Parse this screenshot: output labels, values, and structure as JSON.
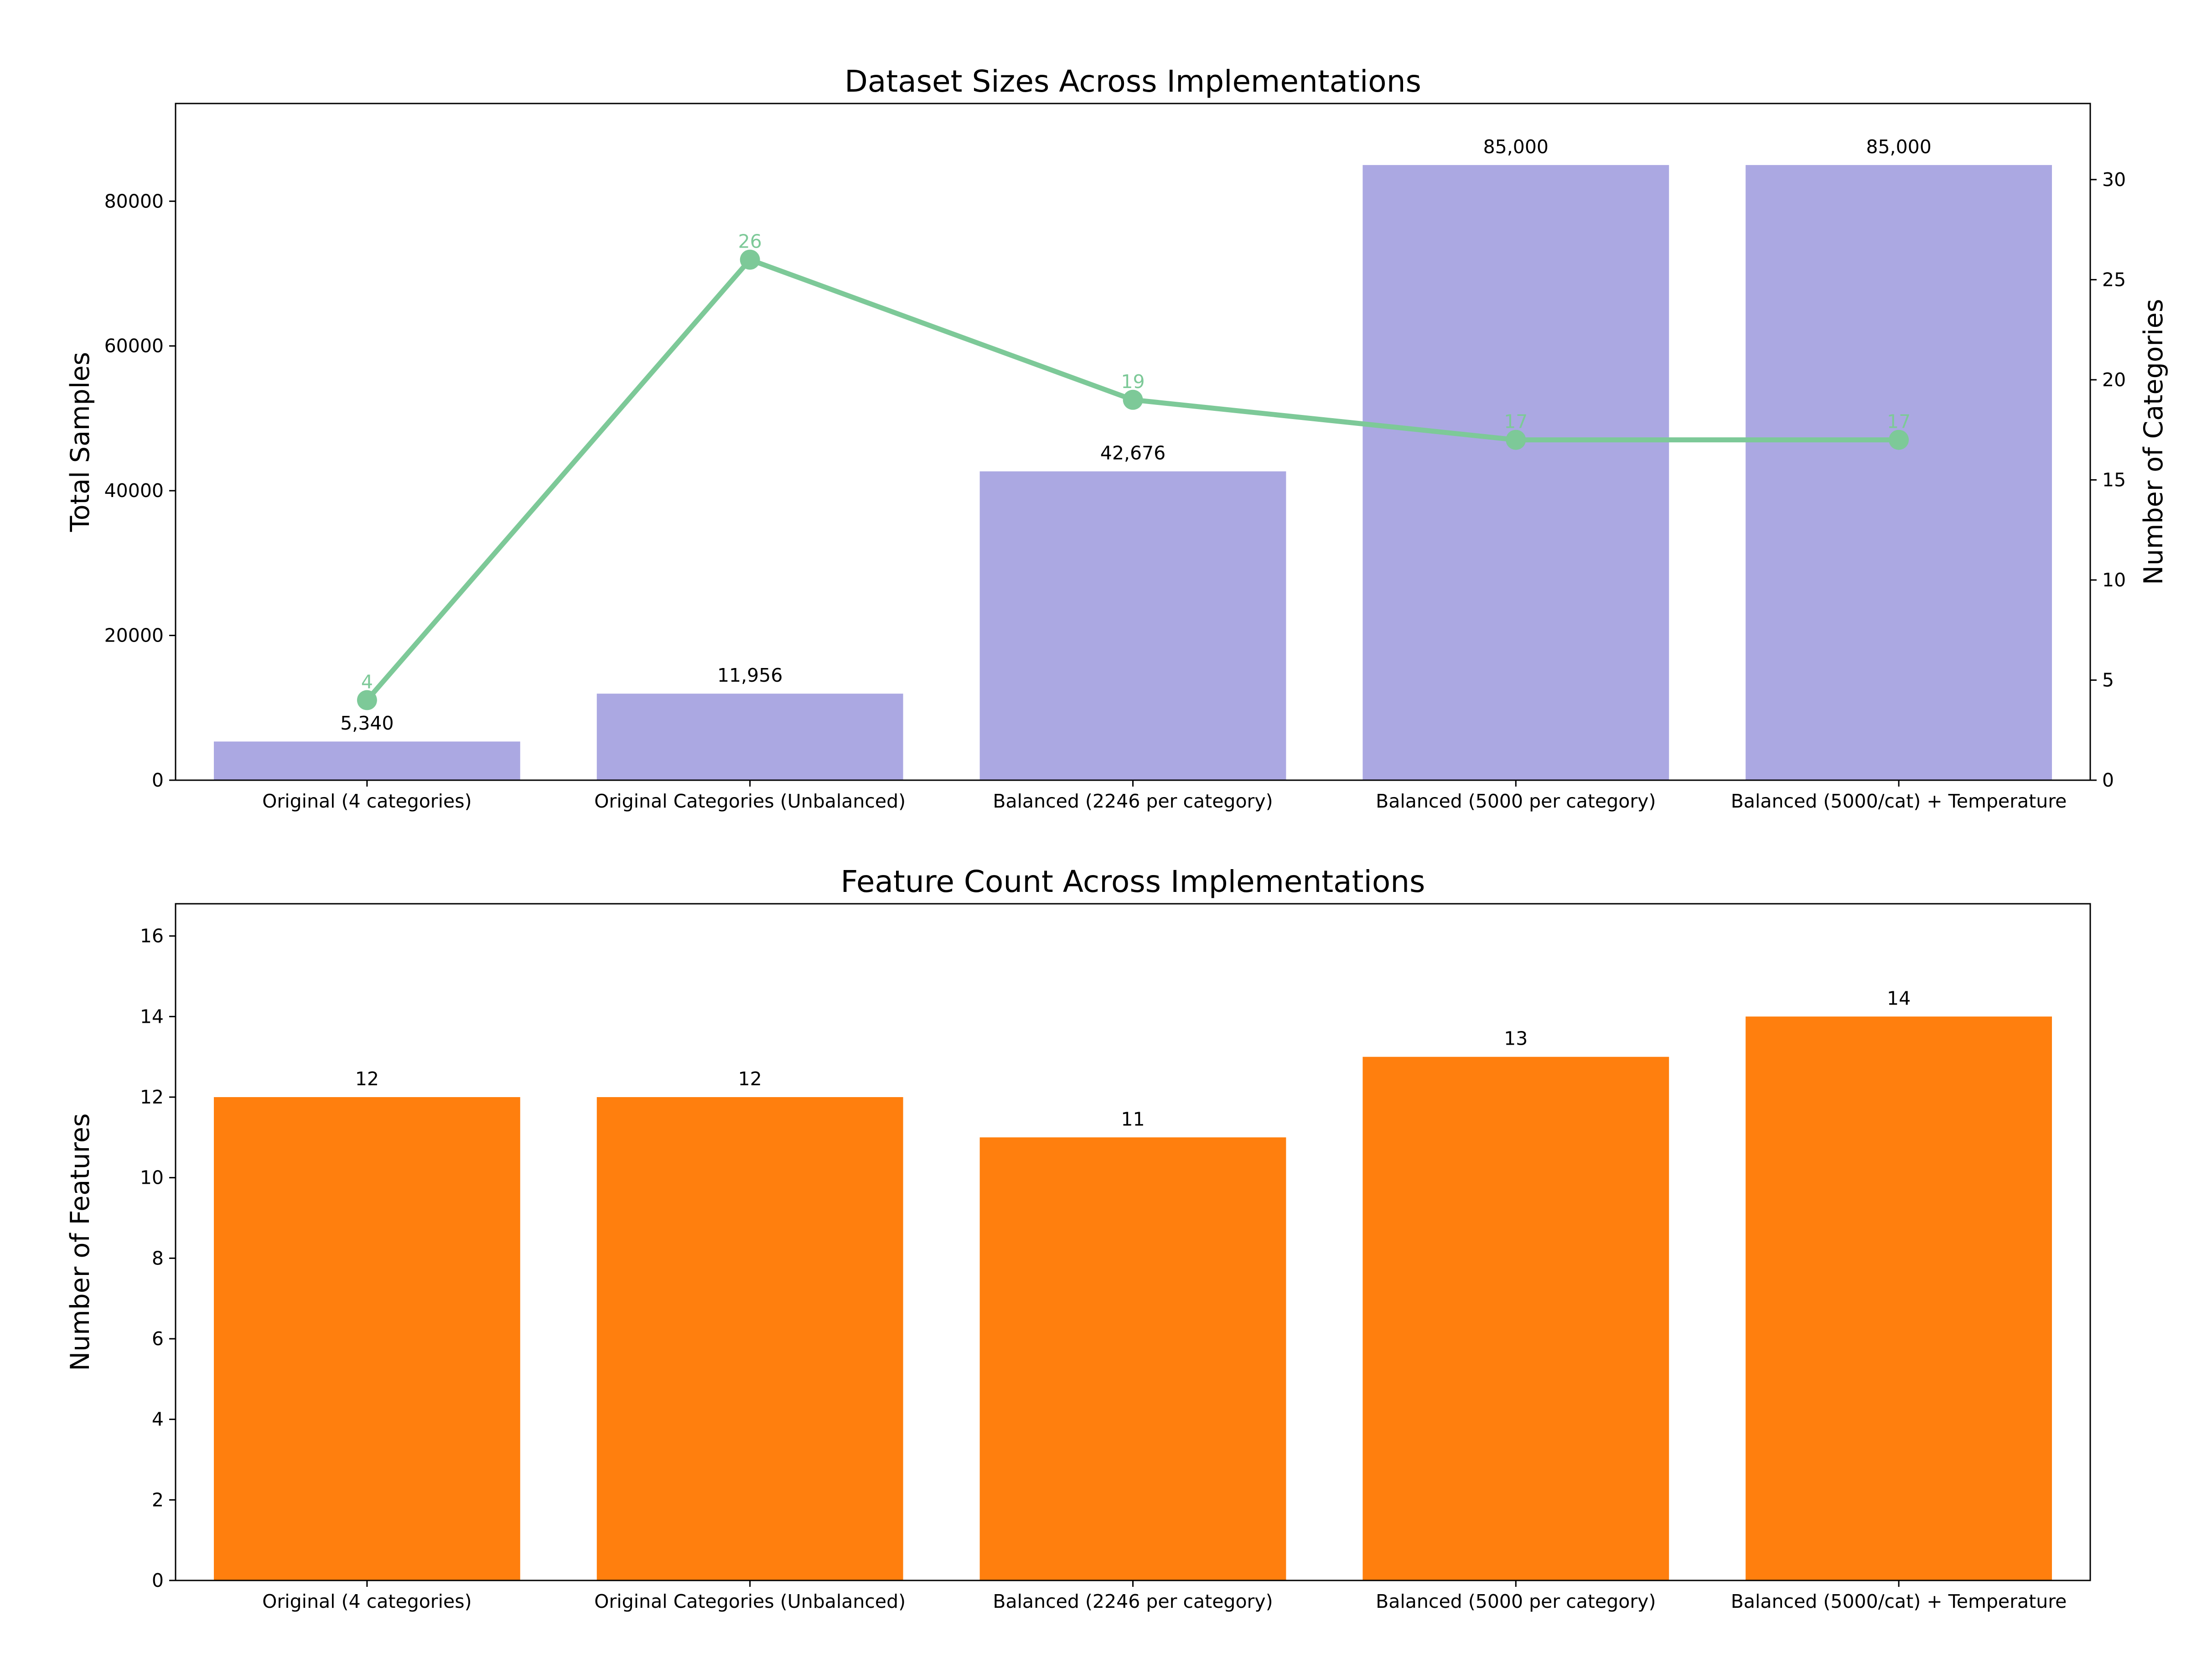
{
  "chart_data": [
    {
      "type": "bar",
      "title": "Dataset Sizes Across Implementations",
      "xlabel": "",
      "ylabel": "Total Samples",
      "y2label": "Number of Categories",
      "categories": [
        "Original (4 categories)",
        "Original Categories (Unbalanced)",
        "Balanced (2246 per category)",
        "Balanced (5000 per category)",
        "Balanced (5000/cat) + Temperature"
      ],
      "series": [
        {
          "type": "bar",
          "axis": "left",
          "values": [
            5340,
            11956,
            42676,
            85000,
            85000
          ],
          "labels": [
            "5,340",
            "11,956",
            "42,676",
            "85,000",
            "85,000"
          ],
          "color": "#aba8e2"
        },
        {
          "type": "line",
          "axis": "right",
          "values": [
            4,
            26,
            19,
            17,
            17
          ],
          "labels": [
            "4",
            "26",
            "19",
            "17",
            "17"
          ],
          "color": "#7dc998"
        }
      ],
      "ylim": [
        0,
        93500
      ],
      "yticks": [
        0,
        20000,
        40000,
        60000,
        80000
      ],
      "y2lim": [
        0,
        33.8
      ],
      "y2ticks": [
        0,
        5,
        10,
        15,
        20,
        25,
        30
      ],
      "grid": false
    },
    {
      "type": "bar",
      "title": "Feature Count Across Implementations",
      "xlabel": "",
      "ylabel": "Number of Features",
      "categories": [
        "Original (4 categories)",
        "Original Categories (Unbalanced)",
        "Balanced (2246 per category)",
        "Balanced (5000 per category)",
        "Balanced (5000/cat) + Temperature"
      ],
      "series": [
        {
          "type": "bar",
          "axis": "left",
          "values": [
            12,
            12,
            11,
            13,
            14
          ],
          "labels": [
            "12",
            "12",
            "11",
            "13",
            "14"
          ],
          "color": "#ff7f0e"
        }
      ],
      "ylim": [
        0,
        16.8
      ],
      "yticks": [
        0,
        2,
        4,
        6,
        8,
        10,
        12,
        14,
        16
      ],
      "grid": false
    }
  ]
}
